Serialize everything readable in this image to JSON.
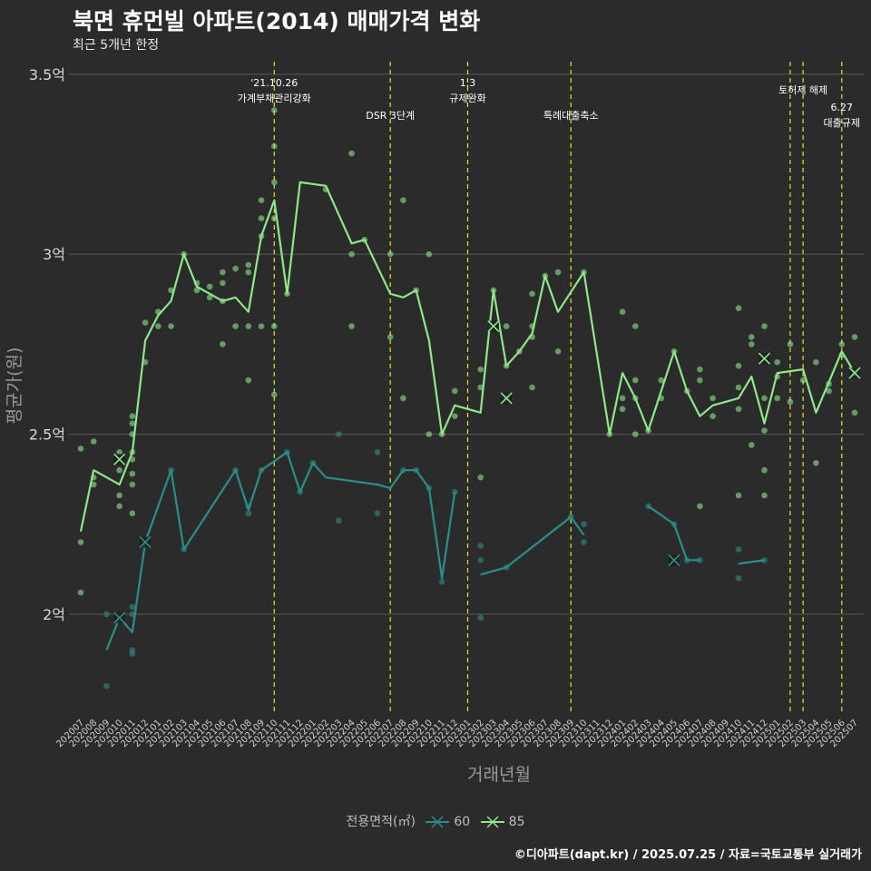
{
  "header": {
    "title": "북면 휴먼빌 아파트(2014) 매매가격 변화",
    "subtitle": "최근 5개년 한정"
  },
  "caption": "©디아파트(dapt.kr) / 2025.07.25 / 자료=국토교통부 실거래가",
  "colors": {
    "background": "#2b2b2b",
    "grid": "#555555",
    "series_60": "#2a8f8a",
    "series_85": "#8ee88a",
    "event_line": "#e8e01e",
    "text_muted": "#bdbdbd"
  },
  "chart_data": {
    "type": "line",
    "title": "북면 휴먼빌 아파트(2014) 매매가격 변화",
    "subtitle": "최근 5개년 한정",
    "xlabel": "거래년월",
    "ylabel": "평균가(원)",
    "ylim": [
      1.72,
      3.55
    ],
    "yticks": [
      {
        "value": 2.0,
        "label": "2억"
      },
      {
        "value": 2.5,
        "label": "2.5억"
      },
      {
        "value": 3.0,
        "label": "3억"
      },
      {
        "value": 3.5,
        "label": "3.5억"
      }
    ],
    "grid": true,
    "legend": {
      "title": "전용면적(㎡)",
      "position": "bottom"
    },
    "categories": [
      "202007",
      "202008",
      "202009",
      "202010",
      "202011",
      "202012",
      "202101",
      "202102",
      "202103",
      "202104",
      "202105",
      "202106",
      "202107",
      "202108",
      "202109",
      "202110",
      "202111",
      "202112",
      "202201",
      "202202",
      "202203",
      "202204",
      "202205",
      "202206",
      "202207",
      "202208",
      "202209",
      "202210",
      "202211",
      "202212",
      "202301",
      "202302",
      "202303",
      "202304",
      "202305",
      "202306",
      "202307",
      "202308",
      "202309",
      "202310",
      "202311",
      "202312",
      "202401",
      "202402",
      "202403",
      "202404",
      "202405",
      "202406",
      "202407",
      "202408",
      "202409",
      "202410",
      "202411",
      "202412",
      "202501",
      "202502",
      "202503",
      "202504",
      "202505",
      "202506",
      "202507"
    ],
    "series": [
      {
        "name": "60",
        "line": [
          [
            [
              "202009",
              1.9
            ],
            [
              "202010",
              1.99
            ],
            [
              "202011",
              1.95
            ],
            [
              "202012",
              2.2
            ],
            [
              "202102",
              2.4
            ],
            [
              "202103",
              2.18
            ],
            [
              "202107",
              2.4
            ],
            [
              "202108",
              2.29
            ],
            [
              "202109",
              2.4
            ],
            [
              "202111",
              2.45
            ],
            [
              "202112",
              2.34
            ],
            [
              "202201",
              2.42
            ],
            [
              "202202",
              2.38
            ],
            [
              "202206",
              2.36
            ],
            [
              "202207",
              2.35
            ],
            [
              "202208",
              2.4
            ],
            [
              "202209",
              2.4
            ],
            [
              "202210",
              2.35
            ],
            [
              "202211",
              2.1
            ],
            [
              "202212",
              2.34
            ]
          ],
          [
            [
              "202302",
              2.11
            ],
            [
              "202304",
              2.13
            ],
            [
              "202309",
              2.27
            ],
            [
              "202310",
              2.22
            ]
          ],
          [
            [
              "202403",
              2.3
            ],
            [
              "202405",
              2.25
            ],
            [
              "202406",
              2.15
            ],
            [
              "202407",
              2.15
            ]
          ],
          [
            [
              "202410",
              2.14
            ],
            [
              "202412",
              2.15
            ]
          ]
        ],
        "points": [
          [
            "202009",
            1.8
          ],
          [
            "202009",
            2.0
          ],
          [
            "202010",
            1.99
          ],
          [
            "202011",
            1.89
          ],
          [
            "202011",
            1.9
          ],
          [
            "202011",
            2.0
          ],
          [
            "202011",
            2.02
          ],
          [
            "202012",
            2.2
          ],
          [
            "202102",
            2.4
          ],
          [
            "202103",
            2.18
          ],
          [
            "202107",
            2.4
          ],
          [
            "202108",
            2.28
          ],
          [
            "202108",
            2.3
          ],
          [
            "202109",
            2.4
          ],
          [
            "202111",
            2.45
          ],
          [
            "202112",
            2.34
          ],
          [
            "202201",
            2.42
          ],
          [
            "202203",
            2.5
          ],
          [
            "202203",
            2.26
          ],
          [
            "202206",
            2.45
          ],
          [
            "202206",
            2.28
          ],
          [
            "202208",
            2.4
          ],
          [
            "202209",
            2.4
          ],
          [
            "202210",
            2.35
          ],
          [
            "202211",
            2.09
          ],
          [
            "202212",
            2.34
          ],
          [
            "202302",
            1.99
          ],
          [
            "202302",
            2.15
          ],
          [
            "202302",
            2.19
          ],
          [
            "202304",
            2.13
          ],
          [
            "202309",
            2.27
          ],
          [
            "202310",
            2.25
          ],
          [
            "202310",
            2.2
          ],
          [
            "202403",
            2.3
          ],
          [
            "202405",
            2.25
          ],
          [
            "202406",
            2.15
          ],
          [
            "202407",
            2.15
          ],
          [
            "202410",
            2.18
          ],
          [
            "202410",
            2.1
          ],
          [
            "202412",
            2.15
          ]
        ],
        "crosses": [
          [
            "202012",
            2.2
          ],
          [
            "202010",
            1.99
          ],
          [
            "202405",
            2.15
          ]
        ]
      },
      {
        "name": "85",
        "line": [
          [
            [
              "202007",
              2.23
            ],
            [
              "202008",
              2.4
            ],
            [
              "202010",
              2.36
            ],
            [
              "202011",
              2.45
            ],
            [
              "202012",
              2.76
            ],
            [
              "202101",
              2.83
            ],
            [
              "202102",
              2.87
            ],
            [
              "202103",
              3.0
            ],
            [
              "202104",
              2.91
            ],
            [
              "202105",
              2.89
            ],
            [
              "202106",
              2.87
            ],
            [
              "202107",
              2.88
            ],
            [
              "202108",
              2.84
            ],
            [
              "202109",
              3.05
            ],
            [
              "202110",
              3.15
            ],
            [
              "202111",
              2.89
            ],
            [
              "202112",
              3.2
            ],
            [
              "202202",
              3.19
            ],
            [
              "202204",
              3.03
            ],
            [
              "202205",
              3.04
            ],
            [
              "202207",
              2.89
            ],
            [
              "202208",
              2.88
            ],
            [
              "202209",
              2.9
            ],
            [
              "202210",
              2.76
            ],
            [
              "202211",
              2.5
            ],
            [
              "202212",
              2.58
            ],
            [
              "202302",
              2.56
            ],
            [
              "202303",
              2.9
            ],
            [
              "202304",
              2.69
            ],
            [
              "202305",
              2.73
            ],
            [
              "202306",
              2.78
            ],
            [
              "202307",
              2.94
            ],
            [
              "202308",
              2.84
            ],
            [
              "202310",
              2.95
            ],
            [
              "202312",
              2.5
            ],
            [
              "202401",
              2.67
            ],
            [
              "202402",
              2.6
            ],
            [
              "202403",
              2.51
            ],
            [
              "202405",
              2.73
            ],
            [
              "202406",
              2.62
            ],
            [
              "202407",
              2.55
            ],
            [
              "202408",
              2.58
            ],
            [
              "202410",
              2.6
            ],
            [
              "202411",
              2.66
            ],
            [
              "202412",
              2.53
            ],
            [
              "202501",
              2.67
            ],
            [
              "202503",
              2.68
            ],
            [
              "202504",
              2.56
            ],
            [
              "202506",
              2.73
            ],
            [
              "202507",
              2.67
            ]
          ]
        ],
        "points": [
          [
            "202007",
            2.46
          ],
          [
            "202007",
            2.2
          ],
          [
            "202007",
            2.06
          ],
          [
            "202008",
            2.48
          ],
          [
            "202008",
            2.38
          ],
          [
            "202008",
            2.36
          ],
          [
            "202010",
            2.45
          ],
          [
            "202010",
            2.4
          ],
          [
            "202010",
            2.33
          ],
          [
            "202010",
            2.3
          ],
          [
            "202011",
            2.55
          ],
          [
            "202011",
            2.53
          ],
          [
            "202011",
            2.5
          ],
          [
            "202011",
            2.45
          ],
          [
            "202011",
            2.43
          ],
          [
            "202011",
            2.36
          ],
          [
            "202011",
            2.28
          ],
          [
            "202011",
            2.39
          ],
          [
            "202012",
            2.81
          ],
          [
            "202012",
            2.7
          ],
          [
            "202101",
            2.84
          ],
          [
            "202101",
            2.8
          ],
          [
            "202102",
            2.9
          ],
          [
            "202102",
            2.8
          ],
          [
            "202103",
            3.0
          ],
          [
            "202104",
            2.92
          ],
          [
            "202104",
            2.9
          ],
          [
            "202105",
            2.91
          ],
          [
            "202105",
            2.88
          ],
          [
            "202106",
            2.95
          ],
          [
            "202106",
            2.92
          ],
          [
            "202106",
            2.87
          ],
          [
            "202106",
            2.75
          ],
          [
            "202107",
            2.96
          ],
          [
            "202107",
            2.8
          ],
          [
            "202108",
            2.97
          ],
          [
            "202108",
            2.95
          ],
          [
            "202108",
            2.8
          ],
          [
            "202108",
            2.65
          ],
          [
            "202109",
            3.15
          ],
          [
            "202109",
            3.1
          ],
          [
            "202109",
            3.05
          ],
          [
            "202109",
            2.8
          ],
          [
            "202110",
            3.4
          ],
          [
            "202110",
            3.3
          ],
          [
            "202110",
            3.2
          ],
          [
            "202110",
            3.1
          ],
          [
            "202110",
            2.8
          ],
          [
            "202110",
            2.61
          ],
          [
            "202111",
            2.89
          ],
          [
            "202202",
            3.18
          ],
          [
            "202204",
            3.28
          ],
          [
            "202204",
            3.0
          ],
          [
            "202204",
            2.8
          ],
          [
            "202205",
            3.04
          ],
          [
            "202207",
            3.0
          ],
          [
            "202207",
            2.77
          ],
          [
            "202208",
            3.15
          ],
          [
            "202208",
            2.6
          ],
          [
            "202209",
            2.9
          ],
          [
            "202210",
            3.0
          ],
          [
            "202210",
            2.5
          ],
          [
            "202211",
            2.5
          ],
          [
            "202212",
            2.62
          ],
          [
            "202212",
            2.55
          ],
          [
            "202302",
            2.68
          ],
          [
            "202302",
            2.63
          ],
          [
            "202302",
            2.38
          ],
          [
            "202303",
            2.9
          ],
          [
            "202304",
            2.8
          ],
          [
            "202304",
            2.6
          ],
          [
            "202304",
            2.69
          ],
          [
            "202305",
            2.73
          ],
          [
            "202306",
            2.89
          ],
          [
            "202306",
            2.8
          ],
          [
            "202306",
            2.77
          ],
          [
            "202306",
            2.63
          ],
          [
            "202307",
            2.94
          ],
          [
            "202308",
            2.95
          ],
          [
            "202308",
            2.73
          ],
          [
            "202310",
            2.95
          ],
          [
            "202312",
            2.5
          ],
          [
            "202401",
            2.84
          ],
          [
            "202401",
            2.6
          ],
          [
            "202401",
            2.57
          ],
          [
            "202402",
            2.8
          ],
          [
            "202402",
            2.65
          ],
          [
            "202402",
            2.6
          ],
          [
            "202402",
            2.5
          ],
          [
            "202403",
            2.51
          ],
          [
            "202404",
            2.65
          ],
          [
            "202404",
            2.6
          ],
          [
            "202405",
            2.73
          ],
          [
            "202406",
            2.62
          ],
          [
            "202407",
            2.68
          ],
          [
            "202407",
            2.65
          ],
          [
            "202407",
            2.3
          ],
          [
            "202408",
            2.6
          ],
          [
            "202408",
            2.55
          ],
          [
            "202410",
            2.85
          ],
          [
            "202410",
            2.69
          ],
          [
            "202410",
            2.63
          ],
          [
            "202410",
            2.57
          ],
          [
            "202410",
            2.33
          ],
          [
            "202411",
            2.77
          ],
          [
            "202411",
            2.75
          ],
          [
            "202411",
            2.47
          ],
          [
            "202412",
            2.8
          ],
          [
            "202412",
            2.6
          ],
          [
            "202412",
            2.51
          ],
          [
            "202412",
            2.4
          ],
          [
            "202412",
            2.33
          ],
          [
            "202501",
            2.7
          ],
          [
            "202501",
            2.66
          ],
          [
            "202501",
            2.6
          ],
          [
            "202502",
            2.75
          ],
          [
            "202502",
            2.59
          ],
          [
            "202503",
            2.65
          ],
          [
            "202504",
            2.7
          ],
          [
            "202504",
            2.42
          ],
          [
            "202505",
            2.64
          ],
          [
            "202505",
            2.62
          ],
          [
            "202506",
            2.75
          ],
          [
            "202506",
            2.72
          ],
          [
            "202507",
            2.77
          ],
          [
            "202507",
            2.67
          ],
          [
            "202507",
            2.56
          ]
        ],
        "crosses": [
          [
            "202010",
            2.43
          ],
          [
            "202303",
            2.8
          ],
          [
            "202304",
            2.6
          ],
          [
            "202412",
            2.71
          ],
          [
            "202507",
            2.67
          ]
        ]
      }
    ],
    "annotations": [
      {
        "x": "202110",
        "lines": [
          "'21.10.26",
          "가계부채관리강화"
        ]
      },
      {
        "x": "202207",
        "lines": [
          "DSR 3단계"
        ]
      },
      {
        "x": "202301",
        "lines": [
          "1.3",
          "규제완화"
        ]
      },
      {
        "x": "202309",
        "lines": [
          "특례대출축소"
        ]
      },
      {
        "x": "202502",
        "lines": []
      },
      {
        "x": "202503",
        "lines": [
          "토허제 해제"
        ]
      },
      {
        "x": "202506",
        "lines": [
          "6.27",
          "대출규제"
        ]
      }
    ]
  }
}
